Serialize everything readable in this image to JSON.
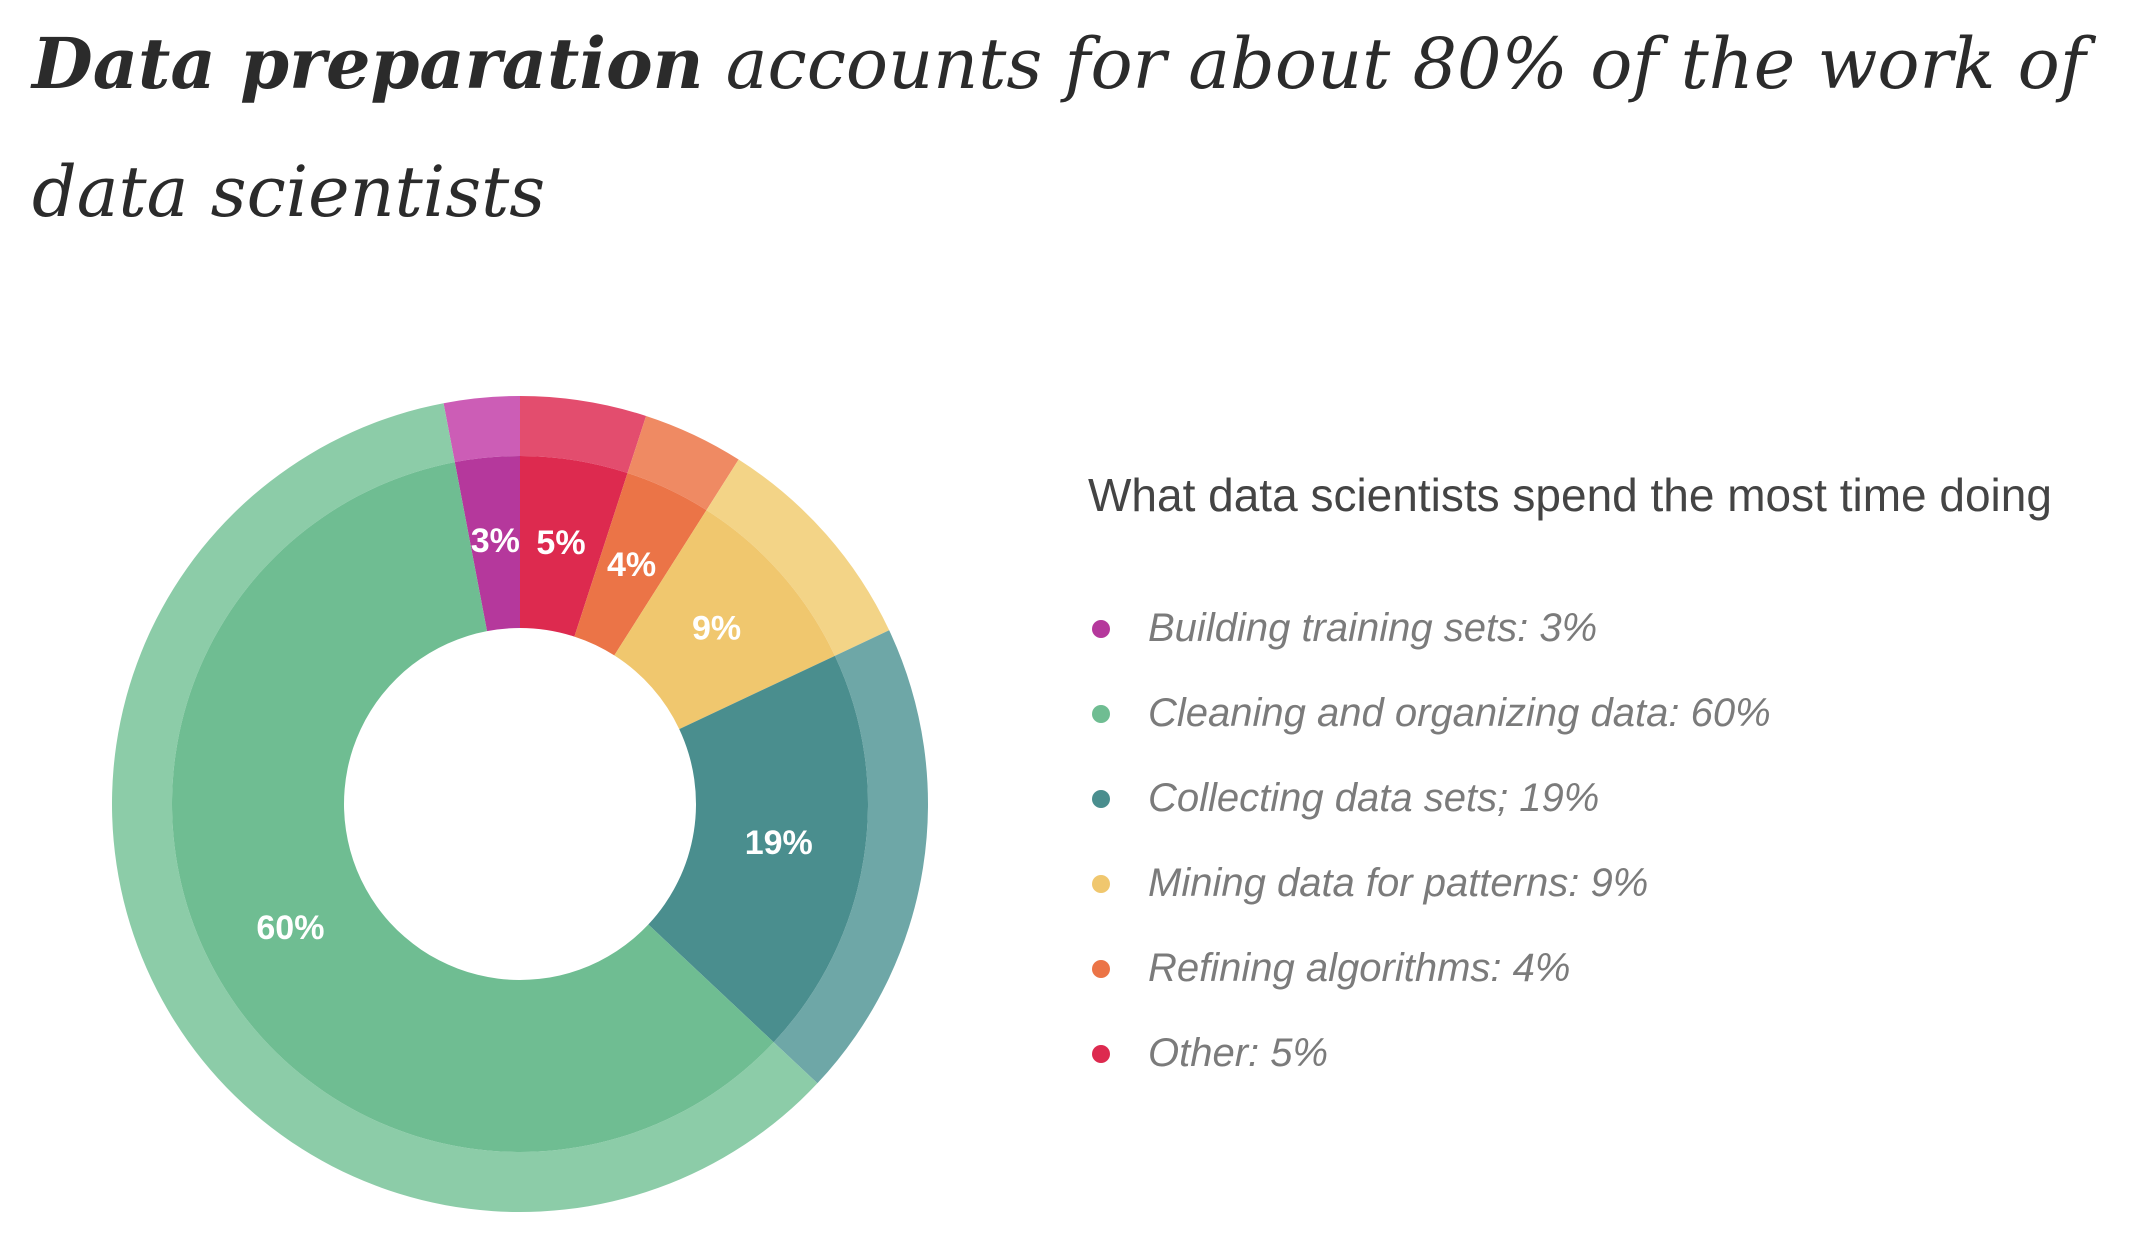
{
  "headline": {
    "strong": "Data preparation",
    "rest": " accounts for about 80% of the work of data scientists"
  },
  "chart_data": {
    "type": "pie",
    "variant": "donut",
    "title": "What data scientists spend the most time doing",
    "slices": [
      {
        "legend": "Building training sets: 3%",
        "label": "3%",
        "value": 3,
        "color": "#b5389c",
        "outer_color": "#cc5db6"
      },
      {
        "legend": "Other: 5%",
        "label": "5%",
        "value": 5,
        "color": "#dd2a4f",
        "outer_color": "#e34d6e"
      },
      {
        "legend": "Refining algorithms: 4%",
        "label": "4%",
        "value": 4,
        "color": "#eb7447",
        "outer_color": "#ef8a63"
      },
      {
        "legend": "Mining data for patterns: 9%",
        "label": "9%",
        "value": 9,
        "color": "#f0c76e",
        "outer_color": "#f3d487"
      },
      {
        "legend": "Collecting data sets; 19%",
        "label": "19%",
        "value": 19,
        "color": "#4a8e8e",
        "outer_color": "#6ea7a7"
      },
      {
        "legend": "Cleaning and organizing data: 60%",
        "label": "60%",
        "value": 60,
        "color": "#6fbd92",
        "outer_color": "#8ccca8"
      }
    ],
    "legend_order": [
      "Building training sets: 3%",
      "Cleaning and organizing data: 60%",
      "Collecting data sets; 19%",
      "Mining data for patterns: 9%",
      "Refining algorithms: 4%",
      "Other: 5%"
    ],
    "legend_placement": "right"
  }
}
